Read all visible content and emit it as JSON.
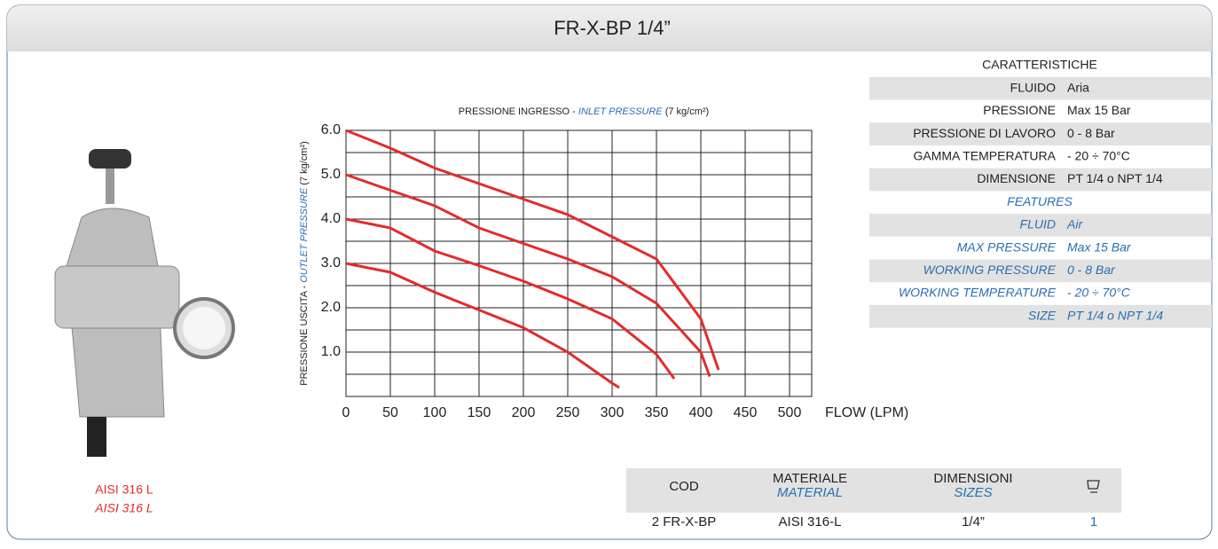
{
  "header": {
    "title": "FR-X-BP 1/4”"
  },
  "product": {
    "material": "AISI 316 L",
    "material_en": "AISI 316 L"
  },
  "chart_data": {
    "type": "line",
    "title": [
      "PRESSIONE INGRESSO - ",
      "INLET PRESSURE",
      "  (7 kg/cm²)"
    ],
    "ylabel": [
      "PRESSIONE USCITA - ",
      "OUTLET PRESSURE",
      "  (7 kg/cm²)"
    ],
    "xlabel": "FLOW (LPM)",
    "xlim": [
      0,
      525
    ],
    "ylim": [
      0,
      6
    ],
    "xticks": [
      0,
      50,
      100,
      150,
      200,
      250,
      300,
      350,
      400,
      450,
      500
    ],
    "yticks": [
      {
        "value": 1,
        "label": "1.0"
      },
      {
        "value": 2,
        "label": "2.0"
      },
      {
        "value": 3,
        "label": "3.0"
      },
      {
        "value": 4,
        "label": "4.0"
      },
      {
        "value": 5,
        "label": "5.0"
      },
      {
        "value": 6,
        "label": "6.0"
      }
    ],
    "ygrid": [
      0.5,
      1,
      1.5,
      2,
      2.5,
      3,
      3.5,
      4,
      4.5,
      5,
      5.5
    ],
    "grid": true,
    "series": [
      {
        "color": "#e32b2b",
        "x": [
          0,
          50,
          100,
          150,
          200,
          250,
          300,
          350,
          400,
          420
        ],
        "values": [
          6,
          5.6,
          5.15,
          4.8,
          4.45,
          4.1,
          3.6,
          3.1,
          1.75,
          0.6
        ]
      },
      {
        "color": "#e32b2b",
        "x": [
          0,
          50,
          100,
          150,
          200,
          250,
          300,
          350,
          400,
          410
        ],
        "values": [
          5,
          4.65,
          4.3,
          3.8,
          3.45,
          3.1,
          2.7,
          2.1,
          1.0,
          0.45
        ]
      },
      {
        "color": "#e32b2b",
        "x": [
          0,
          50,
          100,
          150,
          200,
          250,
          300,
          350,
          370
        ],
        "values": [
          4,
          3.8,
          3.28,
          2.95,
          2.6,
          2.2,
          1.75,
          0.95,
          0.4
        ]
      },
      {
        "color": "#e32b2b",
        "x": [
          0,
          50,
          100,
          150,
          200,
          250,
          300,
          308
        ],
        "values": [
          3,
          2.8,
          2.35,
          1.95,
          1.55,
          1.0,
          0.3,
          0.2
        ]
      }
    ]
  },
  "specs": {
    "title": "CARATTERISTICHE",
    "rows": [
      [
        "FLUIDO",
        "Aria"
      ],
      [
        "PRESSIONE",
        "Max 15 Bar"
      ],
      [
        "PRESSIONE DI LAVORO",
        "0 - 8 Bar"
      ],
      [
        "GAMMA TEMPERATURA",
        "- 20 ÷ 70°C"
      ],
      [
        "DIMENSIONE",
        "PT 1/4 o NPT 1/4"
      ]
    ],
    "title_en": "FEATURES",
    "rows_en": [
      [
        "FLUID",
        "Air"
      ],
      [
        "MAX PRESSURE",
        "Max 15 Bar"
      ],
      [
        "WORKING PRESSURE",
        "0 - 8 Bar"
      ],
      [
        "WORKING TEMPERATURE",
        "- 20 ÷ 70°C"
      ],
      [
        "SIZE",
        "PT 1/4 o NPT 1/4"
      ]
    ]
  },
  "table": {
    "headers": [
      "COD",
      "MATERIALE",
      "DIMENSIONI"
    ],
    "headers_en": [
      "MATERIAL",
      "SIZES"
    ],
    "rows": [
      [
        "2 FR-X-BP",
        "AISI 316-L",
        "1/4”",
        "1"
      ]
    ]
  }
}
